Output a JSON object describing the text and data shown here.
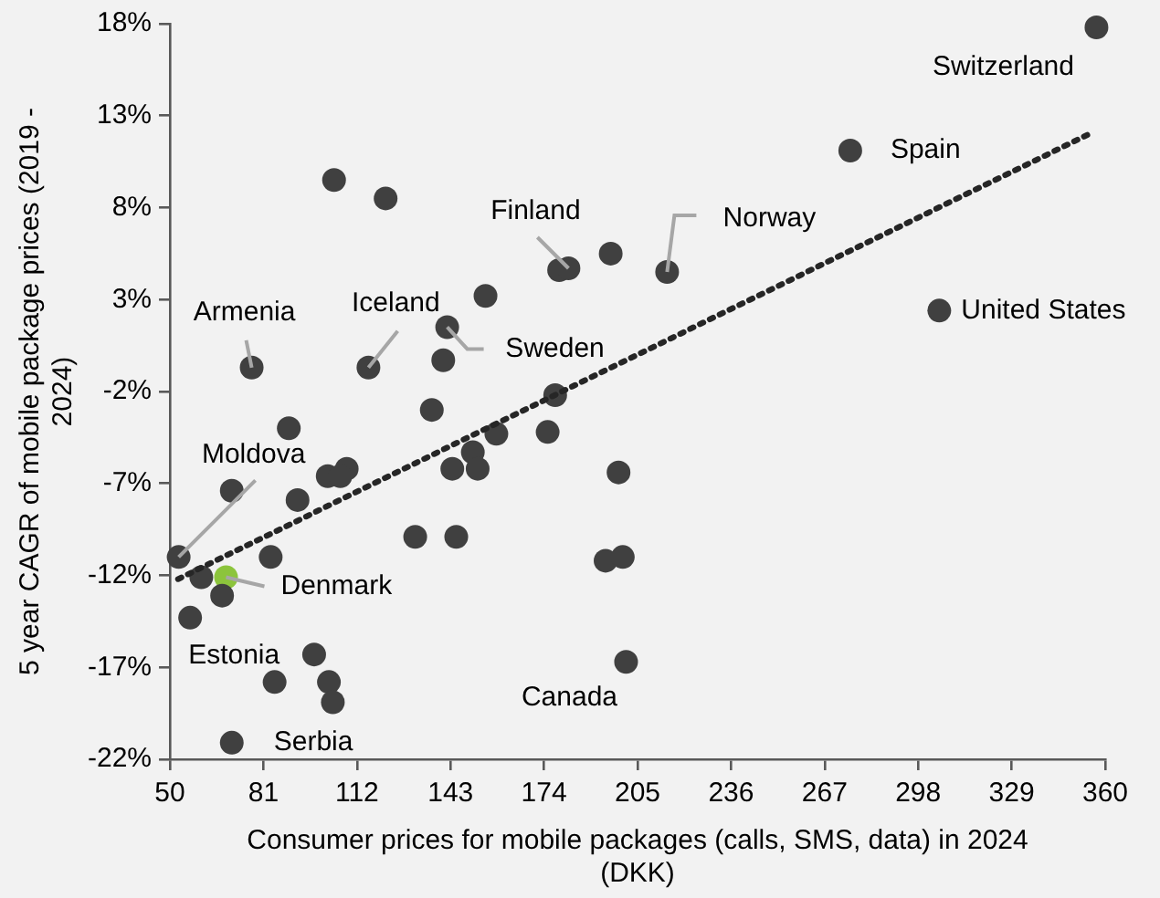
{
  "chart_data": {
    "type": "scatter",
    "xlabel": "Consumer prices for mobile packages (calls, SMS, data) in 2024 (DKK)",
    "ylabel": "5 year CAGR of mobile package prices (2019 - 2024)",
    "xlim": [
      50,
      360
    ],
    "xticks": [
      50,
      81,
      112,
      143,
      174,
      205,
      236,
      267,
      298,
      329,
      360
    ],
    "ylim": [
      -22,
      18
    ],
    "yticks": [
      {
        "value": -22,
        "label": "-22%"
      },
      {
        "value": -17,
        "label": "-17%"
      },
      {
        "value": -12,
        "label": "-12%"
      },
      {
        "value": -7,
        "label": "-7%"
      },
      {
        "value": -2,
        "label": "-2%"
      },
      {
        "value": 3,
        "label": "3%"
      },
      {
        "value": 8,
        "label": "8%"
      },
      {
        "value": 13,
        "label": "13%"
      },
      {
        "value": 18,
        "label": "18%"
      }
    ],
    "grid": false,
    "legend": false,
    "series": [
      {
        "marker": "circle",
        "x": [
          104.4,
          121.5,
          179.0,
          182.1,
          196.1,
          214.8,
          154.6,
          77.1,
          115.8,
          141.9,
          140.6,
          136.8,
          177.7,
          89.4,
          158.2,
          175.2,
          150.4,
          198.7,
          143.6,
          152.0,
          70.5,
          102.3,
          108.6,
          106.5,
          92.3,
          131.3,
          144.9,
          52.9,
          83.4,
          194.4,
          200.1,
          60.4,
          68.6,
          67.3,
          56.7,
          97.8,
          201.2,
          84.7,
          102.7,
          104.0,
          70.5,
          357.1,
          275.5,
          305.0
        ],
        "values": [
          9.5,
          8.5,
          4.6,
          4.7,
          5.5,
          4.5,
          3.2,
          -0.7,
          -0.7,
          1.5,
          -0.3,
          -3.0,
          -2.2,
          -4.0,
          -4.3,
          -4.2,
          -5.3,
          -6.4,
          -6.2,
          -6.2,
          -7.4,
          -6.6,
          -6.2,
          -6.6,
          -7.9,
          -9.9,
          -9.9,
          -11.0,
          -11.0,
          -11.2,
          -11.0,
          -12.1,
          -12.1,
          -13.1,
          -14.3,
          -16.3,
          -16.7,
          -17.8,
          -17.8,
          -18.9,
          -21.1,
          17.8,
          11.1,
          2.4
        ],
        "colors": [
          "#404040",
          "#404040",
          "#404040",
          "#404040",
          "#404040",
          "#404040",
          "#404040",
          "#404040",
          "#404040",
          "#404040",
          "#404040",
          "#404040",
          "#404040",
          "#404040",
          "#404040",
          "#404040",
          "#404040",
          "#404040",
          "#404040",
          "#404040",
          "#404040",
          "#404040",
          "#404040",
          "#404040",
          "#404040",
          "#404040",
          "#404040",
          "#404040",
          "#404040",
          "#404040",
          "#404040",
          "#404040",
          "#8cc43c",
          "#404040",
          "#404040",
          "#404040",
          "#404040",
          "#404040",
          "#404040",
          "#404040",
          "#404040",
          "#404040",
          "#404040",
          "#404040"
        ]
      },
      {
        "type": "line",
        "x": [
          52.7,
          354.7
        ],
        "values": [
          -12.2,
          12.0
        ],
        "color": "#262626",
        "line_style": "dotted"
      }
    ],
    "annotations": [
      {
        "text": "Switzerland",
        "x": 357.1,
        "y": 17.8
      },
      {
        "text": "Spain",
        "x": 275.5,
        "y": 11.1
      },
      {
        "text": "United States",
        "x": 305.0,
        "y": 2.4
      },
      {
        "text": "Norway",
        "x": 214.8,
        "y": 4.5
      },
      {
        "text": "Finland",
        "x": 182.1,
        "y": 4.7
      },
      {
        "text": "Sweden",
        "x": 141.9,
        "y": 1.5
      },
      {
        "text": "Iceland",
        "x": 115.8,
        "y": -0.7
      },
      {
        "text": "Armenia",
        "x": 77.1,
        "y": -0.7
      },
      {
        "text": "Moldova",
        "x": 52.9,
        "y": -11.0
      },
      {
        "text": "Denmark",
        "x": 68.6,
        "y": -12.1
      },
      {
        "text": "Estonia",
        "x": 56.7,
        "y": -14.3
      },
      {
        "text": "Canada",
        "x": 201.2,
        "y": -16.7
      },
      {
        "text": "Serbia",
        "x": 70.5,
        "y": -21.1
      }
    ]
  }
}
